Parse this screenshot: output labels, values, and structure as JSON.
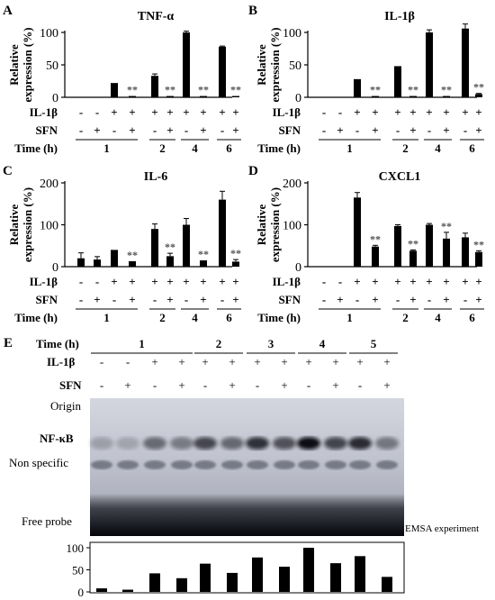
{
  "figure": {
    "background": "#ffffff",
    "bar_color": "#000000",
    "star_color": "#555555",
    "row_labels": {
      "il1b": "IL-1β",
      "sfn": "SFN",
      "time": "Time (h)"
    },
    "ylabel_lines": [
      "Relative",
      "expression (%)"
    ],
    "star_text": "**",
    "pm_il1b": [
      "-",
      "-",
      "+",
      "+",
      "+",
      "+",
      "+",
      "+",
      "+",
      "+"
    ],
    "pm_sfn": [
      "-",
      "+",
      "-",
      "+",
      "-",
      "+",
      "-",
      "+",
      "-",
      "+"
    ],
    "time_labels": [
      "1",
      "2",
      "4",
      "6"
    ]
  },
  "chart_data": [
    {
      "type": "bar",
      "panel": "A",
      "title": "TNF-α",
      "ylim": [
        0,
        100
      ],
      "yticks": [
        "0",
        "50",
        "100"
      ],
      "values": [
        0,
        0,
        22,
        2,
        33,
        2,
        100,
        2,
        78,
        2
      ],
      "errors": [
        0,
        0,
        0,
        0,
        3,
        0,
        2,
        0,
        1,
        0
      ],
      "significance": [
        null,
        null,
        null,
        "**",
        null,
        "**",
        null,
        "**",
        null,
        "**"
      ]
    },
    {
      "type": "bar",
      "panel": "B",
      "title": "IL-1β",
      "ylim": [
        0,
        100
      ],
      "yticks": [
        "0",
        "50",
        "100"
      ],
      "values": [
        0,
        0,
        28,
        2,
        48,
        2,
        100,
        2,
        106,
        5
      ],
      "errors": [
        0,
        0,
        0,
        0,
        0,
        0,
        4,
        0,
        7,
        1
      ],
      "significance": [
        null,
        null,
        null,
        "**",
        null,
        "**",
        null,
        "**",
        null,
        "**"
      ]
    },
    {
      "type": "bar",
      "panel": "C",
      "title": "IL-6",
      "ylim": [
        0,
        200
      ],
      "yticks": [
        "0",
        "100",
        "200"
      ],
      "values": [
        20,
        17,
        40,
        13,
        90,
        25,
        100,
        15,
        160,
        12
      ],
      "errors": [
        13,
        7,
        0,
        0,
        12,
        7,
        15,
        0,
        20,
        5
      ],
      "significance": [
        null,
        null,
        null,
        "**",
        null,
        "**",
        null,
        "**",
        null,
        "**"
      ]
    },
    {
      "type": "bar",
      "panel": "D",
      "title": "CXCL1",
      "ylim": [
        0,
        200
      ],
      "yticks": [
        "0",
        "100",
        "200"
      ],
      "values": [
        0,
        0,
        165,
        48,
        97,
        38,
        100,
        67,
        70,
        35
      ],
      "errors": [
        0,
        0,
        12,
        3,
        3,
        2,
        3,
        15,
        10,
        3
      ],
      "significance": [
        null,
        null,
        null,
        "**",
        null,
        "**",
        null,
        "**",
        null,
        "**"
      ]
    },
    {
      "type": "bar",
      "panel": "E",
      "title": "",
      "ylim": [
        0,
        100
      ],
      "yticks": [
        "0",
        "50",
        "100"
      ],
      "values": [
        8,
        5,
        42,
        31,
        64,
        43,
        78,
        57,
        100,
        65,
        81,
        34
      ]
    }
  ],
  "emsa": {
    "panel": "E",
    "time_label": "Time (h)",
    "il1b_label": "IL-1β",
    "sfn_label": "SFN",
    "time_groups": [
      "1",
      "2",
      "3",
      "4",
      "5"
    ],
    "il1b": [
      "-",
      "-",
      "+",
      "+",
      "+",
      "+",
      "+",
      "+",
      "+",
      "+",
      "+",
      "+"
    ],
    "sfn": [
      "-",
      "+",
      "-",
      "+",
      "-",
      "+",
      "-",
      "+",
      "-",
      "+",
      "-",
      "+"
    ],
    "labels": {
      "origin": "Origin",
      "nfkb": "NF-κB",
      "nonspecific": "Non specific",
      "free_probe": "Free probe",
      "caption": "EMSA experiment"
    }
  }
}
